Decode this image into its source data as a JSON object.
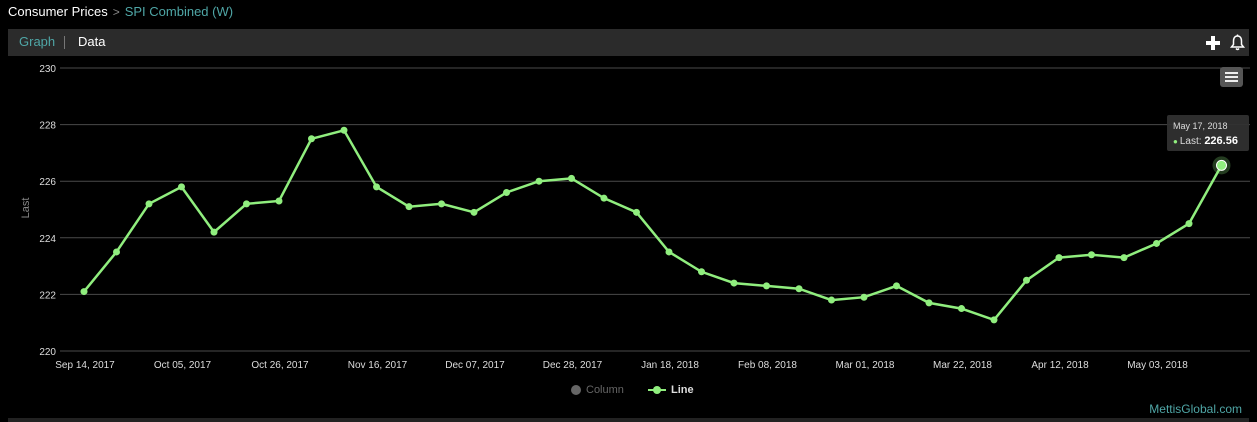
{
  "breadcrumb": {
    "root": "Consumer Prices",
    "separator": ">",
    "leaf": "SPI Combined (W)"
  },
  "tabs": {
    "graph": "Graph",
    "data": "Data"
  },
  "toolbar": {
    "add_icon": "plus-icon",
    "alert_icon": "bell-icon"
  },
  "colors": {
    "line": "#90ee7e",
    "accent": "#4fa6a6",
    "grid": "#4a4a4a"
  },
  "tooltip": {
    "date": "May 17, 2018",
    "label": "Last: ",
    "value": "226.56"
  },
  "legend": {
    "column": "Column",
    "line": "Line"
  },
  "credit": "MettisGlobal.com",
  "chart_data": {
    "type": "line",
    "ylabel": "Last",
    "ylim": [
      220,
      230
    ],
    "yticks": [
      220,
      222,
      224,
      226,
      228,
      230
    ],
    "grid": true,
    "legend_position": "bottom-center",
    "x_ticks": [
      "Sep 14, 2017",
      "Oct 05, 2017",
      "Oct 26, 2017",
      "Nov 16, 2017",
      "Dec 07, 2017",
      "Dec 28, 2017",
      "Jan 18, 2018",
      "Feb 08, 2018",
      "Mar 01, 2018",
      "Mar 22, 2018",
      "Apr 12, 2018",
      "May 03, 2018"
    ],
    "series": [
      {
        "name": "Line",
        "x": [
          "2017-09-14",
          "2017-09-21",
          "2017-09-28",
          "2017-10-05",
          "2017-10-12",
          "2017-10-19",
          "2017-10-26",
          "2017-11-02",
          "2017-11-09",
          "2017-11-16",
          "2017-11-23",
          "2017-11-30",
          "2017-12-07",
          "2017-12-14",
          "2017-12-21",
          "2017-12-28",
          "2018-01-04",
          "2018-01-11",
          "2018-01-18",
          "2018-01-25",
          "2018-02-01",
          "2018-02-08",
          "2018-02-15",
          "2018-02-22",
          "2018-03-01",
          "2018-03-08",
          "2018-03-15",
          "2018-03-22",
          "2018-03-29",
          "2018-04-05",
          "2018-04-12",
          "2018-04-19",
          "2018-04-26",
          "2018-05-03",
          "2018-05-10",
          "2018-05-17"
        ],
        "values": [
          222.1,
          223.5,
          225.2,
          225.8,
          224.2,
          225.2,
          225.3,
          227.5,
          227.8,
          225.8,
          225.1,
          225.2,
          224.9,
          225.6,
          226.0,
          226.1,
          225.4,
          224.9,
          223.5,
          222.8,
          222.4,
          222.3,
          222.2,
          221.8,
          221.9,
          222.3,
          221.7,
          221.5,
          221.1,
          222.5,
          223.3,
          223.4,
          223.3,
          223.8,
          224.5,
          226.56
        ]
      }
    ]
  }
}
